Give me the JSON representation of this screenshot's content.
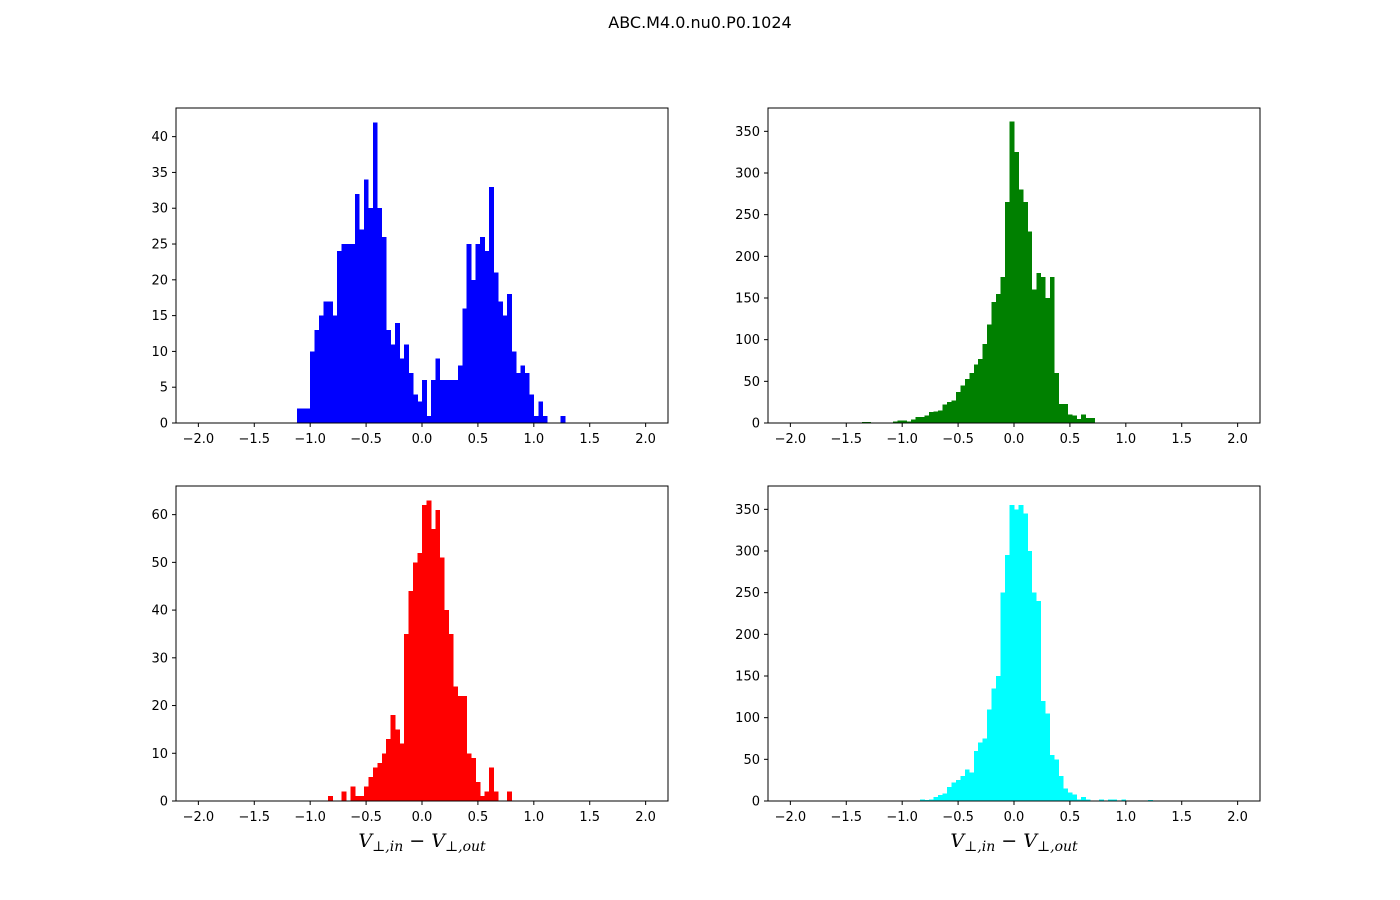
{
  "figure": {
    "title": "ABC.M4.0.nu0.P0.1024"
  },
  "chart_data": [
    {
      "type": "bar",
      "title": "",
      "xlabel": "",
      "ylabel": "",
      "color": "#0000ff",
      "xlim": [
        -2.2,
        2.2
      ],
      "ylim": [
        0,
        44
      ],
      "xticks": [
        -2.0,
        -1.5,
        -1.0,
        -0.5,
        0.0,
        0.5,
        1.0,
        1.5,
        2.0
      ],
      "xtick_labels": [
        "−2.0",
        "−1.5",
        "−1.0",
        "−0.5",
        "0.0",
        "0.5",
        "1.0",
        "1.5",
        "2.0"
      ],
      "yticks": [
        0,
        5,
        10,
        15,
        20,
        25,
        30,
        35,
        40
      ],
      "ytick_labels": [
        "0",
        "5",
        "10",
        "15",
        "20",
        "25",
        "30",
        "35",
        "40"
      ],
      "bin_width": 0.04,
      "bin_starts": [
        -1.12,
        -1.08,
        -1.04,
        -1.0,
        -0.96,
        -0.92,
        -0.88,
        -0.84,
        -0.8,
        -0.76,
        -0.72,
        -0.68,
        -0.64,
        -0.6,
        -0.56,
        -0.52,
        -0.48,
        -0.44,
        -0.4,
        -0.36,
        -0.32,
        -0.28,
        -0.24,
        -0.2,
        -0.16,
        -0.12,
        -0.08,
        -0.04,
        0.0,
        0.04,
        0.08,
        0.12,
        0.16,
        0.2,
        0.24,
        0.28,
        0.32,
        0.36,
        0.4,
        0.44,
        0.48,
        0.52,
        0.56,
        0.6,
        0.64,
        0.68,
        0.72,
        0.76,
        0.8,
        0.84,
        0.88,
        0.92,
        0.96,
        1.0,
        1.04,
        1.08,
        1.12,
        1.16,
        1.2,
        1.24
      ],
      "counts": [
        2,
        2,
        2,
        10,
        13,
        15,
        17,
        17,
        15,
        24,
        25,
        25,
        25,
        32,
        27,
        34,
        30,
        42,
        30,
        26,
        13,
        11,
        14,
        9,
        11,
        7,
        4,
        3,
        6,
        1,
        6,
        9,
        6,
        6,
        6,
        6,
        8,
        16,
        25,
        20,
        25,
        26,
        24,
        33,
        21,
        17,
        15,
        18,
        10,
        7,
        8,
        7,
        4,
        1,
        3,
        1,
        0,
        0,
        0,
        1
      ]
    },
    {
      "type": "bar",
      "title": "",
      "xlabel": "",
      "ylabel": "",
      "color": "#008000",
      "xlim": [
        -2.2,
        2.2
      ],
      "ylim": [
        0,
        378
      ],
      "xticks": [
        -2.0,
        -1.5,
        -1.0,
        -0.5,
        0.0,
        0.5,
        1.0,
        1.5,
        2.0
      ],
      "xtick_labels": [
        "−2.0",
        "−1.5",
        "−1.0",
        "−0.5",
        "0.0",
        "0.5",
        "1.0",
        "1.5",
        "2.0"
      ],
      "yticks": [
        0,
        50,
        100,
        150,
        200,
        250,
        300,
        350
      ],
      "ytick_labels": [
        "0",
        "50",
        "100",
        "150",
        "200",
        "250",
        "300",
        "350"
      ],
      "bin_width": 0.04,
      "bin_starts": [
        -1.36,
        -1.32,
        -1.28,
        -1.24,
        -1.2,
        -1.16,
        -1.12,
        -1.08,
        -1.04,
        -1.0,
        -0.96,
        -0.92,
        -0.88,
        -0.84,
        -0.8,
        -0.76,
        -0.72,
        -0.68,
        -0.64,
        -0.6,
        -0.56,
        -0.52,
        -0.48,
        -0.44,
        -0.4,
        -0.36,
        -0.32,
        -0.28,
        -0.24,
        -0.2,
        -0.16,
        -0.12,
        -0.08,
        -0.04,
        0.0,
        0.04,
        0.08,
        0.12,
        0.16,
        0.2,
        0.24,
        0.28,
        0.32,
        0.36,
        0.4,
        0.44,
        0.48,
        0.52,
        0.56,
        0.6,
        0.64,
        0.68
      ],
      "counts": [
        1,
        1,
        0,
        0,
        0,
        0,
        0,
        2,
        3,
        3,
        2,
        4,
        7,
        7,
        9,
        13,
        14,
        15,
        22,
        25,
        27,
        37,
        45,
        53,
        60,
        70,
        77,
        95,
        118,
        145,
        155,
        175,
        265,
        362,
        325,
        280,
        265,
        230,
        160,
        180,
        175,
        150,
        175,
        60,
        23,
        23,
        10,
        9,
        5,
        10,
        6,
        6
      ]
    },
    {
      "type": "bar",
      "title": "",
      "xlabel": "V⊥,in − V⊥,out",
      "ylabel": "",
      "color": "#ff0000",
      "xlim": [
        -2.2,
        2.2
      ],
      "ylim": [
        0,
        66
      ],
      "xticks": [
        -2.0,
        -1.5,
        -1.0,
        -0.5,
        0.0,
        0.5,
        1.0,
        1.5,
        2.0
      ],
      "xtick_labels": [
        "−2.0",
        "−1.5",
        "−1.0",
        "−0.5",
        "0.0",
        "0.5",
        "1.0",
        "1.5",
        "2.0"
      ],
      "yticks": [
        0,
        10,
        20,
        30,
        40,
        50,
        60
      ],
      "ytick_labels": [
        "0",
        "10",
        "20",
        "30",
        "40",
        "50",
        "60"
      ],
      "bin_width": 0.04,
      "bin_starts": [
        -0.84,
        -0.8,
        -0.76,
        -0.72,
        -0.68,
        -0.64,
        -0.6,
        -0.56,
        -0.52,
        -0.48,
        -0.44,
        -0.4,
        -0.36,
        -0.32,
        -0.28,
        -0.24,
        -0.2,
        -0.16,
        -0.12,
        -0.08,
        -0.04,
        0.0,
        0.04,
        0.08,
        0.12,
        0.16,
        0.2,
        0.24,
        0.28,
        0.32,
        0.36,
        0.4,
        0.44,
        0.48,
        0.52,
        0.56,
        0.6,
        0.64,
        0.68,
        0.72,
        0.76
      ],
      "counts": [
        1,
        0,
        0,
        2,
        0,
        3,
        1,
        1,
        3,
        5,
        7,
        8,
        10,
        13,
        18,
        15,
        12,
        35,
        44,
        50,
        52,
        62,
        63,
        57,
        61,
        51,
        40,
        35,
        24,
        22,
        22,
        10,
        9,
        4,
        1,
        2,
        7,
        2,
        0,
        0,
        2
      ]
    },
    {
      "type": "bar",
      "title": "",
      "xlabel": "V⊥,in − V⊥,out",
      "ylabel": "",
      "color": "#00ffff",
      "xlim": [
        -2.2,
        2.2
      ],
      "ylim": [
        0,
        378
      ],
      "xticks": [
        -2.0,
        -1.5,
        -1.0,
        -0.5,
        0.0,
        0.5,
        1.0,
        1.5,
        2.0
      ],
      "xtick_labels": [
        "−2.0",
        "−1.5",
        "−1.0",
        "−0.5",
        "0.0",
        "0.5",
        "1.0",
        "1.5",
        "2.0"
      ],
      "yticks": [
        0,
        50,
        100,
        150,
        200,
        250,
        300,
        350
      ],
      "ytick_labels": [
        "0",
        "50",
        "100",
        "150",
        "200",
        "250",
        "300",
        "350"
      ],
      "bin_width": 0.04,
      "bin_starts": [
        -0.84,
        -0.8,
        -0.76,
        -0.72,
        -0.68,
        -0.64,
        -0.6,
        -0.56,
        -0.52,
        -0.48,
        -0.44,
        -0.4,
        -0.36,
        -0.32,
        -0.28,
        -0.24,
        -0.2,
        -0.16,
        -0.12,
        -0.08,
        -0.04,
        0.0,
        0.04,
        0.08,
        0.12,
        0.16,
        0.2,
        0.24,
        0.28,
        0.32,
        0.36,
        0.4,
        0.44,
        0.48,
        0.52,
        0.56,
        0.6,
        0.64,
        0.68,
        0.72,
        0.76,
        0.8,
        0.84,
        0.88,
        0.92,
        0.96,
        1.0,
        1.04,
        1.08,
        1.12,
        1.16,
        1.2
      ],
      "counts": [
        2,
        1,
        2,
        5,
        7,
        9,
        17,
        22,
        25,
        30,
        38,
        34,
        60,
        70,
        75,
        110,
        135,
        150,
        250,
        295,
        355,
        350,
        355,
        345,
        300,
        250,
        240,
        120,
        105,
        55,
        50,
        30,
        15,
        10,
        8,
        2,
        5,
        2,
        0,
        0,
        2,
        0,
        2,
        2,
        0,
        2,
        0,
        0,
        0,
        0,
        0,
        1
      ]
    }
  ]
}
